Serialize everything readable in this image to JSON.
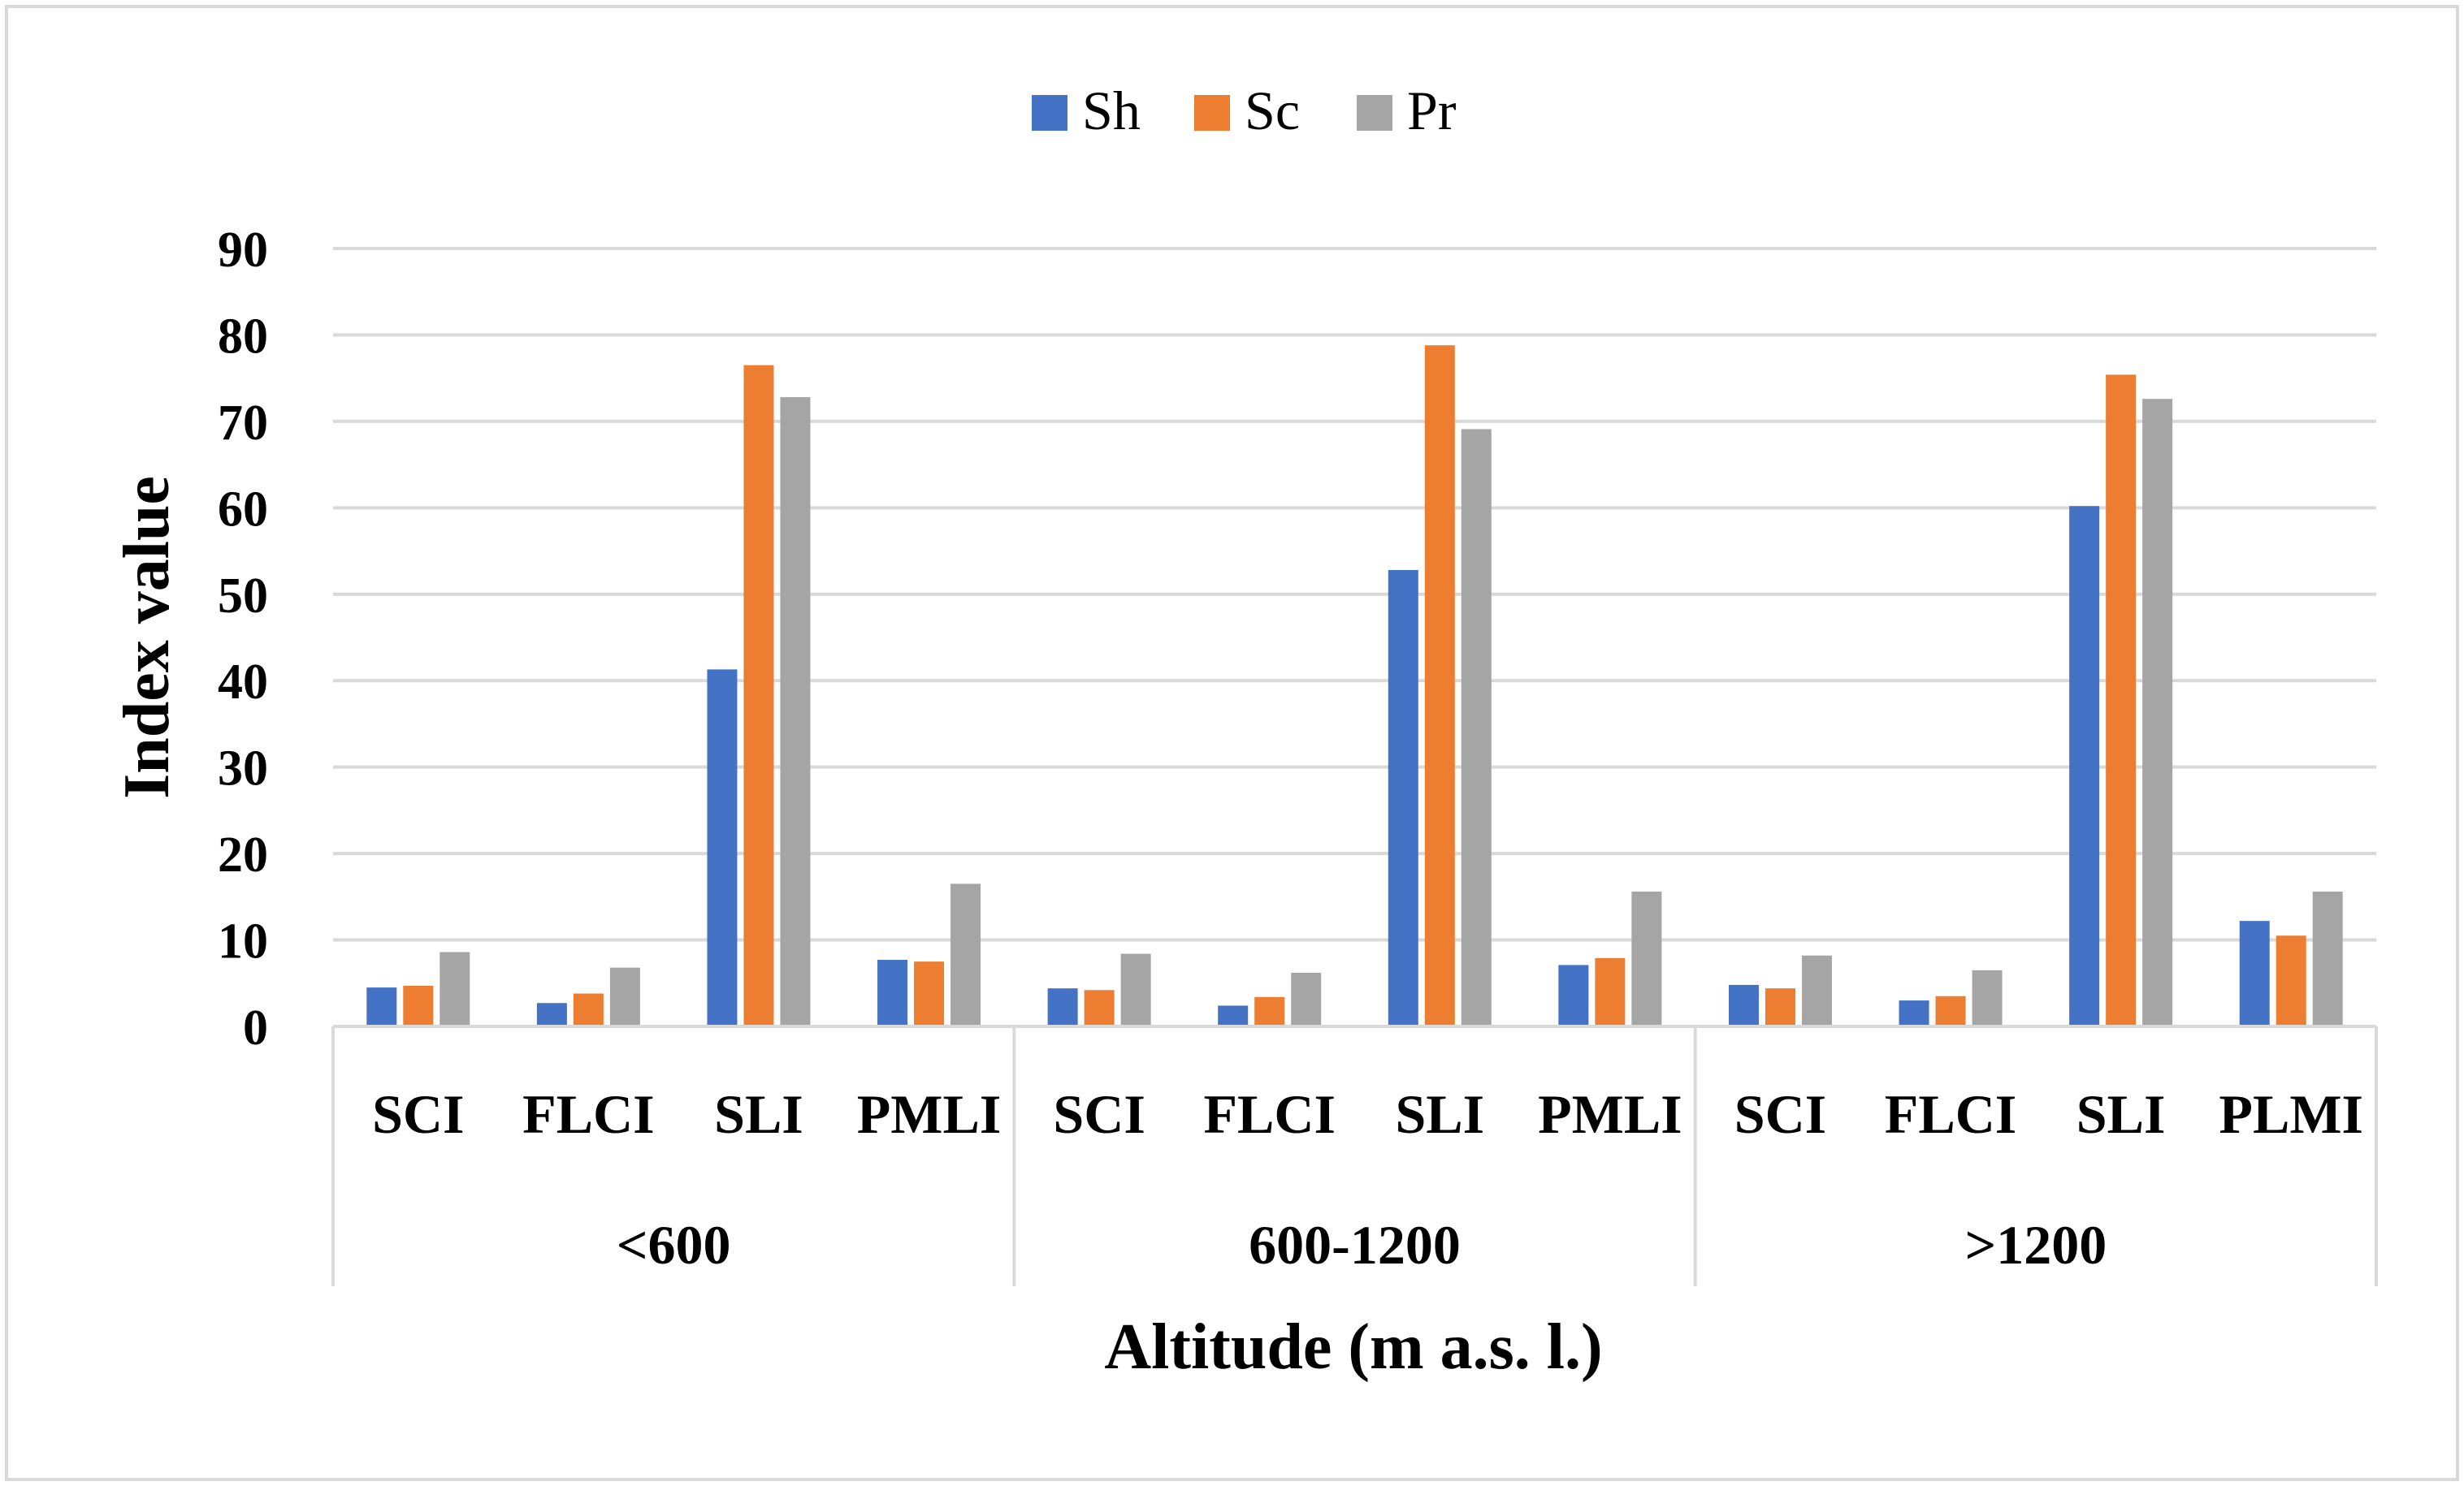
{
  "chart_data": {
    "type": "bar",
    "title": "",
    "xlabel": "Altitude (m a.s. l.)",
    "ylabel": "Index value",
    "ylim": [
      0,
      90
    ],
    "yticks": [
      "0",
      "10",
      "20",
      "30",
      "40",
      "50",
      "60",
      "70",
      "80",
      "90"
    ],
    "grid": true,
    "legend_position": "top-center",
    "groups": [
      {
        "label": "<600",
        "categories": [
          "SCI",
          "FLCI",
          "SLI",
          "PMLI"
        ]
      },
      {
        "label": "600-1200",
        "categories": [
          "SCI",
          "FLCI",
          "SLI",
          "PMLI"
        ]
      },
      {
        "label": ">1200",
        "categories": [
          "SCI",
          "FLCI",
          "SLI",
          "PLMI"
        ]
      }
    ],
    "series": [
      {
        "name": "Sh",
        "color": "#4472C4",
        "values": [
          4.5,
          2.7,
          41.3,
          7.7,
          4.4,
          2.4,
          52.8,
          7.1,
          4.8,
          3.0,
          60.2,
          12.2
        ]
      },
      {
        "name": "Sc",
        "color": "#ED7D31",
        "values": [
          4.7,
          3.8,
          76.5,
          7.5,
          4.2,
          3.4,
          78.8,
          7.9,
          4.4,
          3.5,
          75.4,
          10.5
        ]
      },
      {
        "name": "Pr",
        "color": "#A5A5A5",
        "values": [
          8.6,
          6.8,
          72.8,
          16.5,
          8.4,
          6.2,
          69.1,
          15.6,
          8.2,
          6.5,
          72.6,
          15.6
        ]
      }
    ]
  }
}
